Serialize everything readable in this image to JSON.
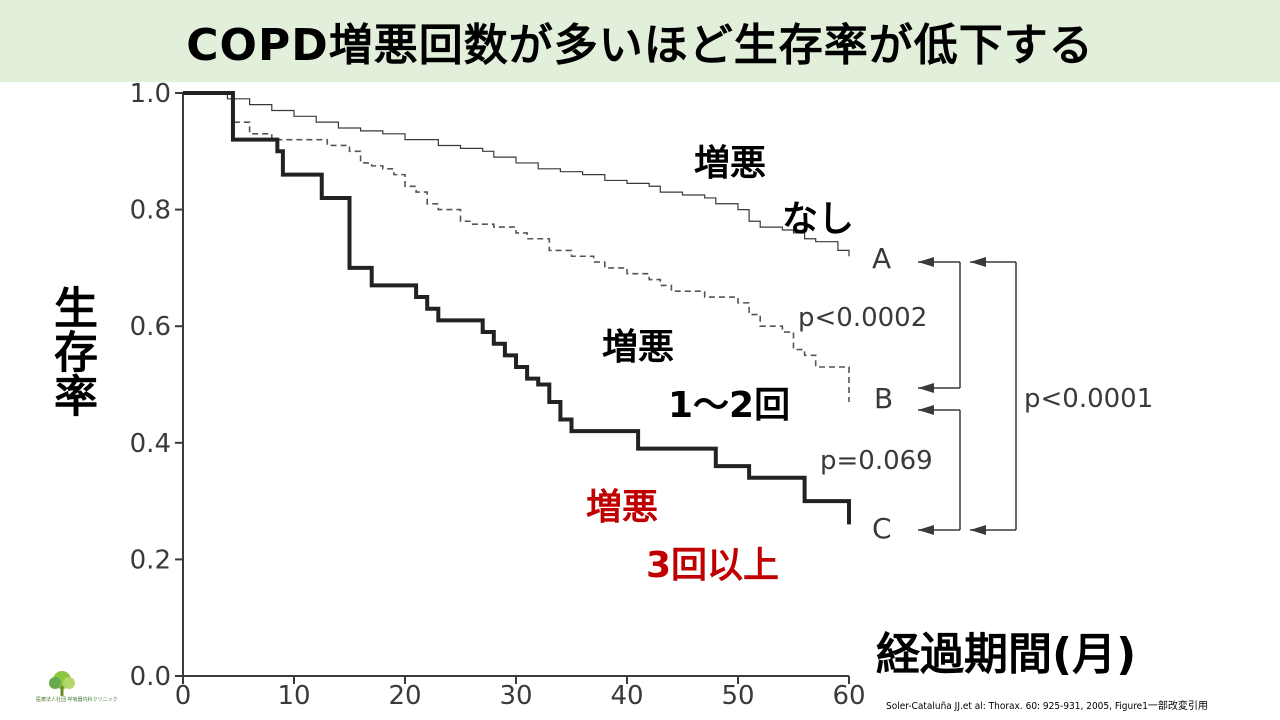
{
  "slide": {
    "title": "COPD増悪回数が多いほど生存率が低下する",
    "ylabel": "生存率",
    "xlabel": "経過期間(月)",
    "citation": "Soler-Cataluña JJ.et al: Thorax. 60: 925-931, 2005, Figure1一部改変引用",
    "logo_text": "医療法人社団 呼吸器内科クリニック",
    "annotations": {
      "none_line1": "増悪",
      "none_line2": "なし",
      "mid_line1": "増悪",
      "mid_line2": "1～2回",
      "high_line1": "増悪",
      "high_line2": "3回以上"
    },
    "curve_letters": {
      "a": "A",
      "b": "B",
      "c": "C"
    },
    "pvalues": {
      "ab": "p<0.0002",
      "bc": "p=0.069",
      "ac": "p<0.0001"
    },
    "colors": {
      "title_bg": "#e2efda",
      "red_label": "#c00000",
      "axis": "#3a3a3a"
    }
  },
  "chart_data": {
    "type": "line",
    "xlabel": "経過期間(月)",
    "ylabel": "生存率",
    "xlim": [
      0,
      60
    ],
    "ylim": [
      0.0,
      1.0
    ],
    "x_ticks": [
      0,
      10,
      20,
      30,
      40,
      50,
      60
    ],
    "y_ticks": [
      0.0,
      0.2,
      0.4,
      0.6,
      0.8,
      1.0
    ],
    "y_tick_labels": [
      "0.0",
      "0.2",
      "0.4",
      "0.6",
      "0.8",
      "1.0"
    ],
    "series": [
      {
        "name": "A",
        "style": "thin",
        "points": [
          [
            0,
            1.0
          ],
          [
            3,
            1.0
          ],
          [
            4,
            0.99
          ],
          [
            6,
            0.98
          ],
          [
            8,
            0.97
          ],
          [
            10,
            0.96
          ],
          [
            12,
            0.95
          ],
          [
            14,
            0.94
          ],
          [
            16,
            0.935
          ],
          [
            18,
            0.93
          ],
          [
            20,
            0.92
          ],
          [
            23,
            0.91
          ],
          [
            25,
            0.905
          ],
          [
            27,
            0.9
          ],
          [
            28,
            0.89
          ],
          [
            30,
            0.88
          ],
          [
            32,
            0.87
          ],
          [
            34,
            0.865
          ],
          [
            36,
            0.86
          ],
          [
            38,
            0.85
          ],
          [
            40,
            0.845
          ],
          [
            42,
            0.84
          ],
          [
            43,
            0.83
          ],
          [
            45,
            0.825
          ],
          [
            47,
            0.82
          ],
          [
            48,
            0.81
          ],
          [
            50,
            0.8
          ],
          [
            51,
            0.78
          ],
          [
            52,
            0.77
          ],
          [
            54,
            0.765
          ],
          [
            55,
            0.76
          ],
          [
            56,
            0.75
          ],
          [
            57,
            0.745
          ],
          [
            59,
            0.73
          ],
          [
            60,
            0.72
          ]
        ]
      },
      {
        "name": "B",
        "style": "dashed",
        "points": [
          [
            0,
            1.0
          ],
          [
            4,
            1.0
          ],
          [
            4.5,
            0.95
          ],
          [
            6,
            0.93
          ],
          [
            8,
            0.92
          ],
          [
            10,
            0.92
          ],
          [
            13,
            0.91
          ],
          [
            15,
            0.9
          ],
          [
            16,
            0.88
          ],
          [
            17,
            0.875
          ],
          [
            18,
            0.87
          ],
          [
            19,
            0.86
          ],
          [
            20,
            0.84
          ],
          [
            21,
            0.83
          ],
          [
            22,
            0.81
          ],
          [
            23,
            0.8
          ],
          [
            25,
            0.78
          ],
          [
            26,
            0.775
          ],
          [
            28,
            0.77
          ],
          [
            30,
            0.76
          ],
          [
            31,
            0.75
          ],
          [
            33,
            0.73
          ],
          [
            35,
            0.72
          ],
          [
            37,
            0.71
          ],
          [
            38,
            0.7
          ],
          [
            40,
            0.69
          ],
          [
            42,
            0.68
          ],
          [
            43,
            0.67
          ],
          [
            44,
            0.66
          ],
          [
            47,
            0.65
          ],
          [
            50,
            0.64
          ],
          [
            51,
            0.62
          ],
          [
            52,
            0.6
          ],
          [
            54,
            0.59
          ],
          [
            55,
            0.56
          ],
          [
            56,
            0.55
          ],
          [
            57,
            0.53
          ],
          [
            59,
            0.53
          ],
          [
            60,
            0.49
          ],
          [
            60,
            0.47
          ]
        ]
      },
      {
        "name": "C",
        "style": "thick",
        "points": [
          [
            0,
            1.0
          ],
          [
            4.5,
            1.0
          ],
          [
            4.5,
            0.92
          ],
          [
            8.5,
            0.92
          ],
          [
            8.5,
            0.9
          ],
          [
            9,
            0.86
          ],
          [
            12.5,
            0.86
          ],
          [
            12.5,
            0.82
          ],
          [
            14,
            0.82
          ],
          [
            15,
            0.73
          ],
          [
            15,
            0.7
          ],
          [
            17,
            0.7
          ],
          [
            17,
            0.67
          ],
          [
            21,
            0.67
          ],
          [
            21,
            0.65
          ],
          [
            22,
            0.63
          ],
          [
            23,
            0.61
          ],
          [
            26,
            0.61
          ],
          [
            27,
            0.59
          ],
          [
            28,
            0.57
          ],
          [
            29,
            0.55
          ],
          [
            30,
            0.53
          ],
          [
            31,
            0.51
          ],
          [
            32,
            0.5
          ],
          [
            33,
            0.47
          ],
          [
            34,
            0.44
          ],
          [
            35,
            0.42
          ],
          [
            41,
            0.42
          ],
          [
            41,
            0.39
          ],
          [
            48,
            0.39
          ],
          [
            48,
            0.36
          ],
          [
            51,
            0.36
          ],
          [
            51,
            0.34
          ],
          [
            56,
            0.34
          ],
          [
            56,
            0.3
          ],
          [
            60,
            0.3
          ],
          [
            60,
            0.26
          ]
        ]
      }
    ]
  }
}
